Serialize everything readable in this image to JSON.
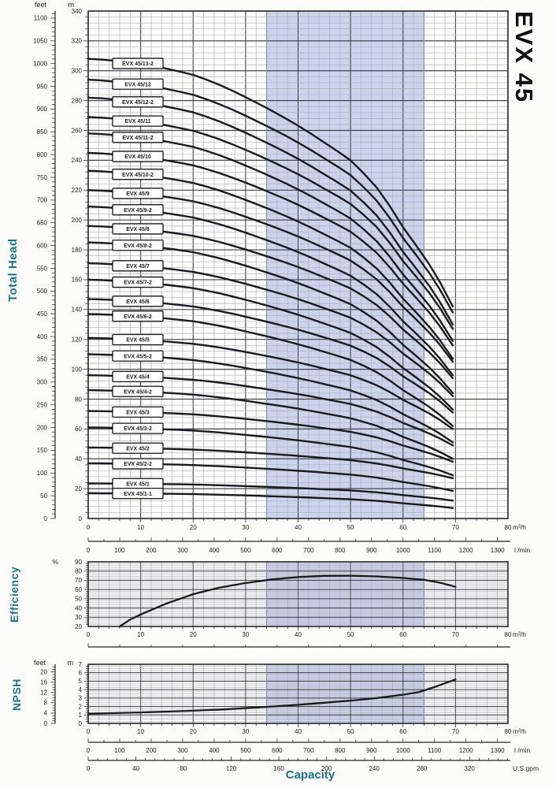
{
  "title": "EVX 45",
  "colors": {
    "accent": "#1c7392",
    "band": "#ccd3ea",
    "band_edge": "#8891bb",
    "grid_minor": "#afafba",
    "grid_major": "#45454c",
    "curve": "#1a1a1f",
    "border": "#26262b",
    "text": "#1d1d22",
    "box_fill": "#ffffff",
    "box_stroke": "#15151a"
  },
  "labels": {
    "total_head": "Total Head",
    "efficiency": "Efficiency",
    "npsh": "NPSH",
    "capacity": "Capacity",
    "feet": "feet",
    "m": "m",
    "percent": "%",
    "m3h": "m³/h",
    "lmin": "l /min",
    "usgpm": "U.S.gpm"
  },
  "chart_data": [
    {
      "id": "head",
      "type": "line",
      "title": "EVX 45",
      "ylabel": "Total Head",
      "x_unit": "m³/h",
      "x2_unit": "l /min",
      "xlim": [
        0,
        80
      ],
      "ylim": [
        0,
        340
      ],
      "feet_axis_max": 1100,
      "band": [
        34,
        64
      ],
      "grid": "on",
      "x_ticks": [
        0,
        10,
        20,
        30,
        40,
        50,
        60,
        70,
        80
      ],
      "y_ticks_m": [
        0,
        20,
        40,
        60,
        80,
        100,
        120,
        140,
        160,
        180,
        200,
        220,
        240,
        260,
        280,
        300,
        320,
        340
      ],
      "y_ticks_feet": [
        0,
        50,
        100,
        150,
        200,
        250,
        300,
        350,
        400,
        450,
        500,
        550,
        600,
        650,
        700,
        750,
        800,
        850,
        900,
        950,
        1000,
        1050,
        1100
      ],
      "lmin_ticks": [
        0,
        100,
        200,
        300,
        400,
        500,
        600,
        700,
        800,
        900,
        1000,
        1100,
        1200,
        1300
      ],
      "curves": [
        {
          "label": "EVX 45/13-2",
          "h0": 308,
          "he": 142
        },
        {
          "label": "EVX 45/12",
          "h0": 294,
          "he": 138
        },
        {
          "label": "EVX 45/12-2",
          "h0": 282,
          "he": 130
        },
        {
          "label": "EVX 45/11",
          "h0": 269,
          "he": 127
        },
        {
          "label": "EVX 45/11-2",
          "h0": 258,
          "he": 119
        },
        {
          "label": "EVX 45/10",
          "h0": 245,
          "he": 116
        },
        {
          "label": "EVX 45/10-2",
          "h0": 233,
          "he": 107
        },
        {
          "label": "EVX 45/9",
          "h0": 220,
          "he": 105
        },
        {
          "label": "EVX 45/9-2",
          "h0": 209,
          "he": 96
        },
        {
          "label": "EVX 45/8",
          "h0": 196,
          "he": 94
        },
        {
          "label": "EVX 45/8-2",
          "h0": 185,
          "he": 84
        },
        {
          "label": "EVX 45/7",
          "h0": 171,
          "he": 82
        },
        {
          "label": "EVX 45/7-2",
          "h0": 160,
          "he": 73
        },
        {
          "label": "EVX 45/6",
          "h0": 147,
          "he": 71
        },
        {
          "label": "EVX 45/6-2",
          "h0": 137,
          "he": 62
        },
        {
          "label": "EVX 45/5",
          "h0": 121,
          "he": 60
        },
        {
          "label": "EVX 45/5-2",
          "h0": 110,
          "he": 51
        },
        {
          "label": "EVX 45/4",
          "h0": 96,
          "he": 49
        },
        {
          "label": "EVX 45/4-2",
          "h0": 86,
          "he": 40
        },
        {
          "label": "EVX 45/3",
          "h0": 72,
          "he": 38
        },
        {
          "label": "EVX 45/3-2",
          "h0": 61,
          "he": 29
        },
        {
          "label": "EVX 45/2",
          "h0": 47.5,
          "he": 27
        },
        {
          "label": "EVX 45/2-2",
          "h0": 37,
          "he": 18.5
        },
        {
          "label": "EVX 45/1",
          "h0": 23.5,
          "he": 12
        },
        {
          "label": "EVX 45/1-1",
          "h0": 17,
          "he": 7
        }
      ]
    },
    {
      "id": "efficiency",
      "type": "line",
      "ylabel": "Efficiency",
      "y_unit": "%",
      "x_unit": "m³/h",
      "xlim": [
        0,
        80
      ],
      "ylim": [
        20,
        90
      ],
      "band": [
        34,
        64
      ],
      "grid": "on",
      "x_ticks": [
        0,
        10,
        20,
        30,
        40,
        50,
        60,
        70,
        80
      ],
      "y_ticks": [
        20,
        30,
        40,
        50,
        60,
        70,
        80,
        90
      ],
      "points": [
        [
          6,
          20
        ],
        [
          8,
          27.5
        ],
        [
          10,
          33
        ],
        [
          12.5,
          39
        ],
        [
          15,
          45
        ],
        [
          17.5,
          50
        ],
        [
          20,
          55
        ],
        [
          25,
          62
        ],
        [
          30,
          67
        ],
        [
          35,
          71
        ],
        [
          40,
          73.5
        ],
        [
          45,
          74.8
        ],
        [
          50,
          75
        ],
        [
          55,
          74.2
        ],
        [
          60,
          72.5
        ],
        [
          64,
          70.5
        ],
        [
          67,
          67.5
        ],
        [
          70,
          63
        ]
      ]
    },
    {
      "id": "npsh",
      "type": "line",
      "ylabel": "NPSH",
      "x_unit": "m³/h",
      "x2_unit": "l /min",
      "x3_unit": "U.S.gpm",
      "xlim": [
        0,
        80
      ],
      "ylim": [
        0,
        7
      ],
      "feet_axis_max": 20,
      "band": [
        34,
        64
      ],
      "grid": "on",
      "x_ticks": [
        0,
        10,
        20,
        30,
        40,
        50,
        60,
        70,
        80
      ],
      "y_ticks": [
        0,
        1,
        2,
        3,
        4,
        5,
        6,
        7
      ],
      "y_ticks_feet": [
        0,
        4,
        8,
        12,
        16,
        20
      ],
      "lmin_ticks": [
        0,
        100,
        200,
        300,
        400,
        500,
        600,
        700,
        800,
        900,
        1000,
        1100,
        1200,
        1300
      ],
      "gpm_ticks": [
        0,
        40,
        80,
        120,
        160,
        200,
        240,
        280,
        320
      ],
      "points": [
        [
          0,
          1.15
        ],
        [
          5,
          1.22
        ],
        [
          10,
          1.3
        ],
        [
          15,
          1.4
        ],
        [
          20,
          1.5
        ],
        [
          25,
          1.63
        ],
        [
          30,
          1.8
        ],
        [
          35,
          2.0
        ],
        [
          40,
          2.2
        ],
        [
          45,
          2.45
        ],
        [
          50,
          2.7
        ],
        [
          55,
          3.0
        ],
        [
          60,
          3.4
        ],
        [
          63,
          3.7
        ],
        [
          66,
          4.3
        ],
        [
          68,
          4.75
        ],
        [
          70,
          5.2
        ]
      ]
    }
  ]
}
